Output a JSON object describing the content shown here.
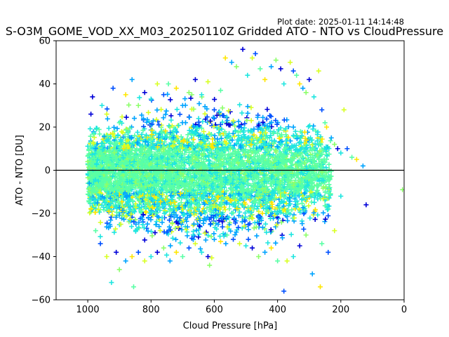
{
  "chart_data": {
    "type": "scatter",
    "title": "S-O3M_GOME_VOD_XX_M03_20250110Z Gridded ATO - NTO vs CloudPressure",
    "plot_date": "Plot date: 2025-01-11 14:14:48",
    "xlabel": "Cloud Pressure [hPa]",
    "ylabel": "ATO - NTO [DU]",
    "xlim": [
      1100,
      0
    ],
    "ylim": [
      -60,
      60
    ],
    "x_ticks": [
      "1000",
      "800",
      "600",
      "400",
      "200",
      "0"
    ],
    "y_ticks": [
      "60",
      "40",
      "20",
      "0",
      "−20",
      "−40",
      "−60"
    ],
    "x_tick_values": [
      1000,
      800,
      600,
      400,
      200,
      0
    ],
    "y_tick_values": [
      60,
      40,
      20,
      0,
      -20,
      -40,
      -60
    ],
    "zero_line": 0,
    "marker": "+",
    "colors": [
      "#0000d8",
      "#0050ff",
      "#00a4ff",
      "#1fe6e0",
      "#59ffa6",
      "#8cff6a",
      "#d8ff24",
      "#ffe600"
    ],
    "grid": false,
    "series": [
      {
        "values": [
          [
            985,
            34
          ],
          [
            955,
            30
          ],
          [
            940,
            26
          ],
          [
            920,
            38
          ],
          [
            900,
            22
          ],
          [
            880,
            35
          ],
          [
            860,
            42
          ],
          [
            840,
            30
          ],
          [
            820,
            36
          ],
          [
            800,
            33
          ],
          [
            780,
            40
          ],
          [
            760,
            35
          ],
          [
            745,
            40
          ],
          [
            720,
            38
          ],
          [
            700,
            30
          ],
          [
            680,
            36
          ],
          [
            660,
            42
          ],
          [
            640,
            35
          ],
          [
            620,
            41
          ],
          [
            600,
            28
          ],
          [
            580,
            37
          ],
          [
            565,
            52
          ],
          [
            545,
            50
          ],
          [
            530,
            48
          ],
          [
            510,
            56
          ],
          [
            495,
            44
          ],
          [
            480,
            52
          ],
          [
            470,
            54
          ],
          [
            455,
            47
          ],
          [
            440,
            42
          ],
          [
            420,
            48
          ],
          [
            405,
            51
          ],
          [
            390,
            47
          ],
          [
            380,
            40
          ],
          [
            360,
            50
          ],
          [
            350,
            46
          ],
          [
            340,
            44
          ],
          [
            330,
            40
          ],
          [
            320,
            38
          ],
          [
            310,
            36
          ],
          [
            300,
            42
          ],
          [
            285,
            34
          ],
          [
            270,
            46
          ],
          [
            260,
            28
          ],
          [
            250,
            22
          ],
          [
            245,
            20
          ],
          [
            230,
            15
          ],
          [
            220,
            12
          ],
          [
            210,
            10
          ],
          [
            200,
            8
          ],
          [
            190,
            28
          ],
          [
            180,
            10
          ],
          [
            165,
            6
          ],
          [
            150,
            5
          ],
          [
            130,
            2
          ],
          [
            5,
            -9
          ],
          [
            120,
            -16
          ],
          [
            200,
            -12
          ],
          [
            220,
            -28
          ],
          [
            240,
            -38
          ],
          [
            260,
            -34
          ],
          [
            265,
            -54
          ],
          [
            290,
            -48
          ],
          [
            310,
            -30
          ],
          [
            330,
            -35
          ],
          [
            350,
            -40
          ],
          [
            370,
            -42
          ],
          [
            380,
            -56
          ],
          [
            400,
            -42
          ],
          [
            420,
            -36
          ],
          [
            440,
            -38
          ],
          [
            460,
            -40
          ],
          [
            480,
            -36
          ],
          [
            500,
            -35
          ],
          [
            520,
            -34
          ],
          [
            540,
            -32
          ],
          [
            560,
            -30
          ],
          [
            580,
            -33
          ],
          [
            600,
            -32
          ],
          [
            615,
            -44
          ],
          [
            620,
            -40
          ],
          [
            640,
            -38
          ],
          [
            660,
            -34
          ],
          [
            680,
            -36
          ],
          [
            700,
            -40
          ],
          [
            720,
            -38
          ],
          [
            740,
            -42
          ],
          [
            760,
            -36
          ],
          [
            780,
            -38
          ],
          [
            800,
            -40
          ],
          [
            820,
            -42
          ],
          [
            840,
            -38
          ],
          [
            855,
            -54
          ],
          [
            860,
            -40
          ],
          [
            880,
            -42
          ],
          [
            900,
            -46
          ],
          [
            910,
            -38
          ],
          [
            925,
            -52
          ],
          [
            940,
            -40
          ],
          [
            960,
            -34
          ],
          [
            975,
            -28
          ],
          [
            990,
            -18
          ],
          [
            995,
            -6
          ],
          [
            1000,
            4
          ],
          [
            990,
            26
          ]
        ]
      }
    ]
  }
}
